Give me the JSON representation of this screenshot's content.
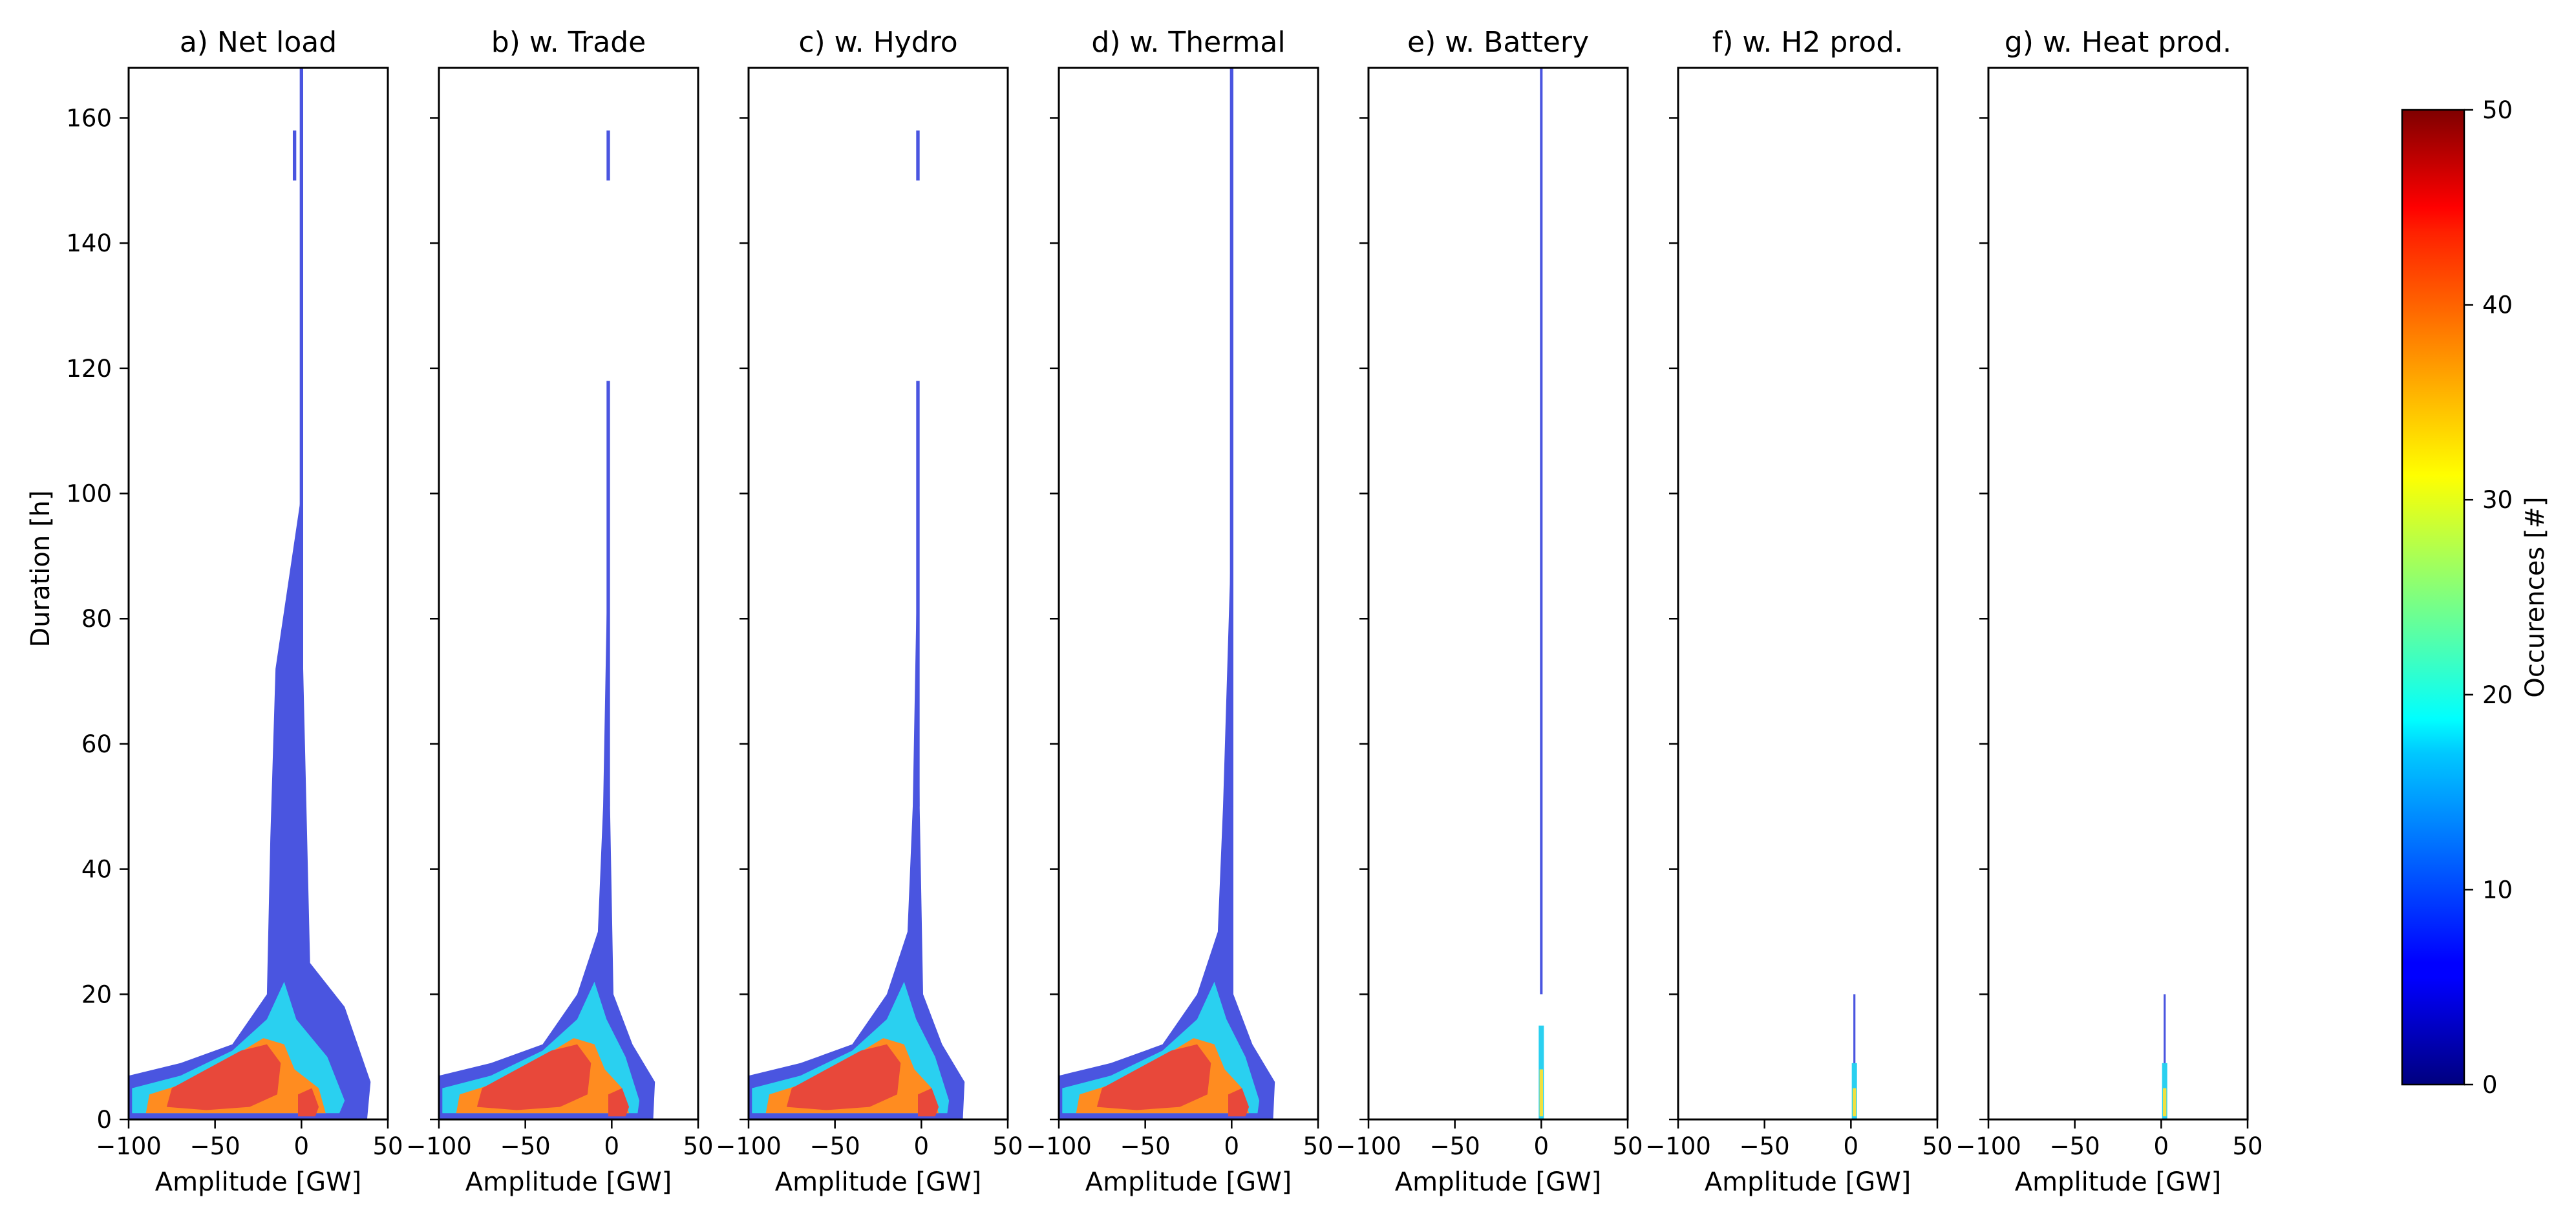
{
  "chart_data": {
    "type": "heatmap",
    "panels": [
      {
        "title": "a) Net load",
        "xlabel": "Amplitude [GW]",
        "trend": "netload"
      },
      {
        "title": "b) w. Trade",
        "xlabel": "Amplitude [GW]",
        "trend": "trade"
      },
      {
        "title": "c) w. Hydro",
        "xlabel": "Amplitude [GW]",
        "trend": "hydro"
      },
      {
        "title": "d) w. Thermal",
        "xlabel": "Amplitude [GW]",
        "trend": "thermal"
      },
      {
        "title": "e) w. Battery",
        "xlabel": "Amplitude [GW]",
        "trend": "battery"
      },
      {
        "title": "f) w. H2 prod.",
        "xlabel": "Amplitude [GW]",
        "trend": "h2"
      },
      {
        "title": "g) w. Heat prod.",
        "xlabel": "Amplitude [GW]",
        "trend": "heat"
      }
    ],
    "ylabel": "Duration [h]",
    "xlim": [
      -100,
      50
    ],
    "ylim": [
      0,
      168
    ],
    "xticks": [
      -100,
      -50,
      0,
      50
    ],
    "xtick_labels": [
      "−100",
      "−50",
      "0",
      "50"
    ],
    "yticks": [
      0,
      20,
      40,
      60,
      80,
      100,
      120,
      140,
      160
    ],
    "colorbar": {
      "label": "Occurences [#]",
      "range": [
        0,
        50
      ],
      "ticks": [
        0,
        10,
        20,
        30,
        40,
        50
      ],
      "colormap": "jet"
    },
    "colors": {
      "low": "#4a55e0",
      "mid": "#2ad0f0",
      "yellow": "#f0e040",
      "orange": "#ff8c20",
      "high": "#e8483a",
      "frame": "#000000"
    }
  }
}
